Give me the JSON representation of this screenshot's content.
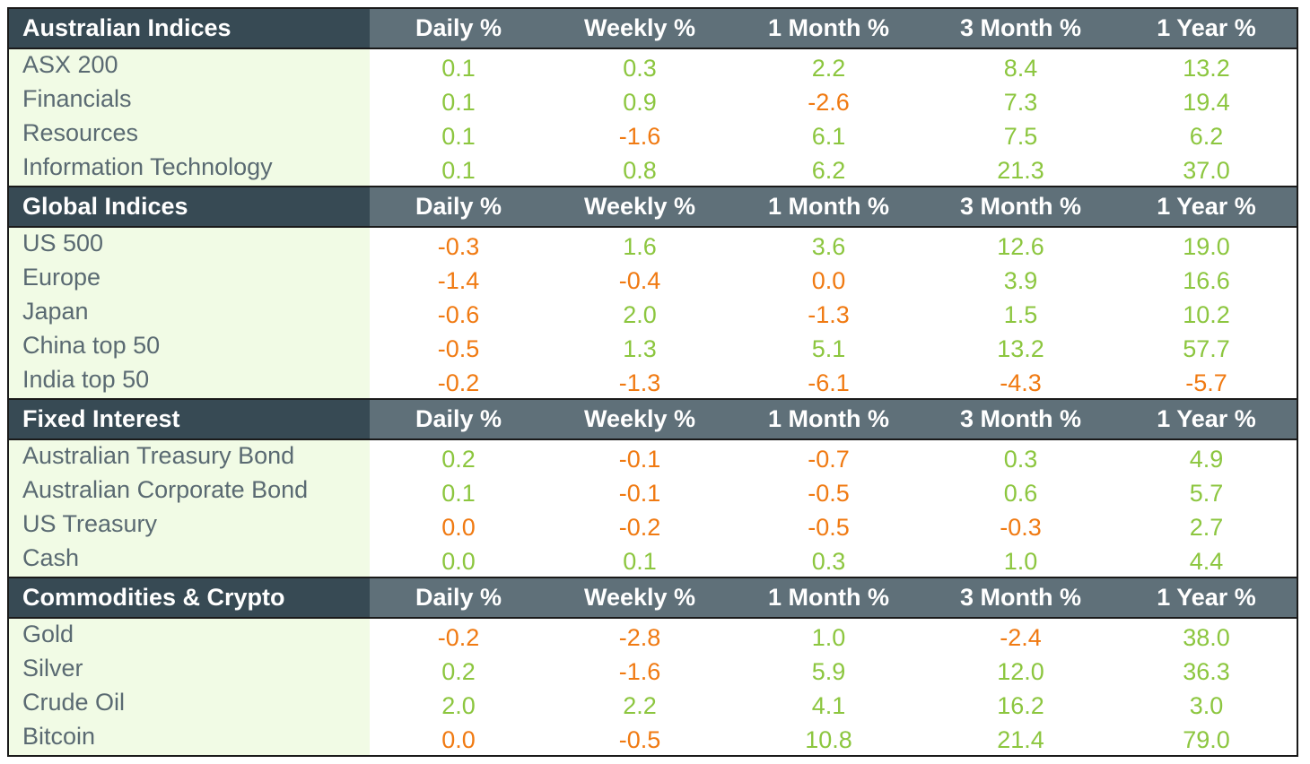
{
  "columns": [
    "Daily %",
    "Weekly %",
    "1 Month %",
    "3 Month %",
    "1 Year %"
  ],
  "colors": {
    "positive": "#8cc63f",
    "negative": "#f07a12",
    "header_dark": "#374a54",
    "header_light": "#5f7079",
    "name_bg": "#f1fbe5"
  },
  "sections": [
    {
      "title": "Australian Indices",
      "rows": [
        {
          "name": "ASX 200",
          "values": [
            "0.1",
            "0.3",
            "2.2",
            "8.4",
            "13.2"
          ]
        },
        {
          "name": "Financials",
          "values": [
            "0.1",
            "0.9",
            "-2.6",
            "7.3",
            "19.4"
          ]
        },
        {
          "name": "Resources",
          "values": [
            "0.1",
            "-1.6",
            "6.1",
            "7.5",
            "6.2"
          ]
        },
        {
          "name": "Information Technology",
          "values": [
            "0.1",
            "0.8",
            "6.2",
            "21.3",
            "37.0"
          ]
        }
      ]
    },
    {
      "title": "Global Indices",
      "rows": [
        {
          "name": "US 500",
          "values": [
            "-0.3",
            "1.6",
            "3.6",
            "12.6",
            "19.0"
          ]
        },
        {
          "name": "Europe",
          "values": [
            "-1.4",
            "-0.4",
            "0.0",
            "3.9",
            "16.6"
          ]
        },
        {
          "name": "Japan",
          "values": [
            "-0.6",
            "2.0",
            "-1.3",
            "1.5",
            "10.2"
          ]
        },
        {
          "name": "China top 50",
          "values": [
            "-0.5",
            "1.3",
            "5.1",
            "13.2",
            "57.7"
          ]
        },
        {
          "name": "India top 50",
          "values": [
            "-0.2",
            "-1.3",
            "-6.1",
            "-4.3",
            "-5.7"
          ]
        }
      ]
    },
    {
      "title": "Fixed Interest",
      "rows": [
        {
          "name": "Australian Treasury Bond",
          "values": [
            "0.2",
            "-0.1",
            "-0.7",
            "0.3",
            "4.9"
          ]
        },
        {
          "name": "Australian Corporate Bond",
          "values": [
            "0.1",
            "-0.1",
            "-0.5",
            "0.6",
            "5.7"
          ]
        },
        {
          "name": "US Treasury",
          "values": [
            "0.0",
            "-0.2",
            "-0.5",
            "-0.3",
            "2.7"
          ]
        },
        {
          "name": "Cash",
          "values": [
            "0.0",
            "0.1",
            "0.3",
            "1.0",
            "4.4"
          ]
        }
      ]
    },
    {
      "title": "Commodities & Crypto",
      "rows": [
        {
          "name": "Gold",
          "values": [
            "-0.2",
            "-2.8",
            "1.0",
            "-2.4",
            "38.0"
          ]
        },
        {
          "name": "Silver",
          "values": [
            "0.2",
            "-1.6",
            "5.9",
            "12.0",
            "36.3"
          ]
        },
        {
          "name": "Crude Oil",
          "values": [
            "2.0",
            "2.2",
            "4.1",
            "16.2",
            "3.0"
          ]
        },
        {
          "name": "Bitcoin",
          "values": [
            "0.0",
            "-0.5",
            "10.8",
            "21.4",
            "79.0"
          ]
        }
      ]
    }
  ],
  "value_colors": [
    [
      "pos",
      "pos",
      "pos",
      "pos",
      "pos"
    ],
    [
      "pos",
      "pos",
      "neg",
      "pos",
      "pos"
    ],
    [
      "pos",
      "neg",
      "pos",
      "pos",
      "pos"
    ],
    [
      "pos",
      "pos",
      "pos",
      "pos",
      "pos"
    ],
    [
      "neg",
      "pos",
      "pos",
      "pos",
      "pos"
    ],
    [
      "neg",
      "neg",
      "neg",
      "pos",
      "pos"
    ],
    [
      "neg",
      "pos",
      "neg",
      "pos",
      "pos"
    ],
    [
      "neg",
      "pos",
      "pos",
      "pos",
      "pos"
    ],
    [
      "neg",
      "neg",
      "neg",
      "neg",
      "neg"
    ],
    [
      "pos",
      "neg",
      "neg",
      "pos",
      "pos"
    ],
    [
      "pos",
      "neg",
      "neg",
      "pos",
      "pos"
    ],
    [
      "neg",
      "neg",
      "neg",
      "neg",
      "pos"
    ],
    [
      "pos",
      "pos",
      "pos",
      "pos",
      "pos"
    ],
    [
      "neg",
      "neg",
      "pos",
      "neg",
      "pos"
    ],
    [
      "pos",
      "neg",
      "pos",
      "pos",
      "pos"
    ],
    [
      "pos",
      "pos",
      "pos",
      "pos",
      "pos"
    ],
    [
      "neg",
      "neg",
      "pos",
      "pos",
      "pos"
    ]
  ]
}
